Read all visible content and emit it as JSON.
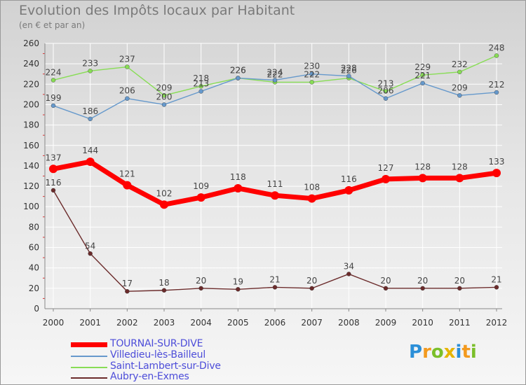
{
  "header": {
    "title": "Evolution des Impôts locaux par Habitant",
    "subtitle": "(en € et par an)"
  },
  "logo": {
    "text": "Proxiti"
  },
  "chart_data": {
    "type": "line",
    "title": "Evolution des Impôts locaux par Habitant",
    "subtitle": "(en € et par an)",
    "xlabel": "",
    "ylabel": "",
    "ylim": [
      0,
      260
    ],
    "y_ticks": [
      0,
      20,
      40,
      60,
      80,
      100,
      120,
      140,
      160,
      180,
      200,
      220,
      240,
      260
    ],
    "grid": true,
    "legend_position": "bottom-left",
    "x": [
      "2000",
      "2001",
      "2002",
      "2003",
      "2004",
      "2005",
      "2006",
      "2007",
      "2008",
      "2009",
      "2010",
      "2011",
      "2012"
    ],
    "series": [
      {
        "name": "TOURNAI-SUR-DIVE",
        "color": "#ff0000",
        "values": [
          137,
          144,
          121,
          102,
          109,
          118,
          111,
          108,
          116,
          127,
          128,
          128,
          133
        ]
      },
      {
        "name": "Villedieu-lès-Bailleul",
        "color": "#6699cc",
        "values": [
          199,
          186,
          206,
          200,
          213,
          226,
          224,
          230,
          228,
          206,
          221,
          209,
          212
        ]
      },
      {
        "name": "Saint-Lambert-sur-Dive",
        "color": "#88dd55",
        "values": [
          224,
          233,
          237,
          209,
          218,
          226,
          222,
          222,
          226,
          213,
          229,
          232,
          248
        ]
      },
      {
        "name": "Aubry-en-Exmes",
        "color": "#6b2b2b",
        "values": [
          116,
          54,
          17,
          18,
          20,
          19,
          21,
          20,
          34,
          20,
          20,
          20,
          21
        ]
      }
    ]
  }
}
